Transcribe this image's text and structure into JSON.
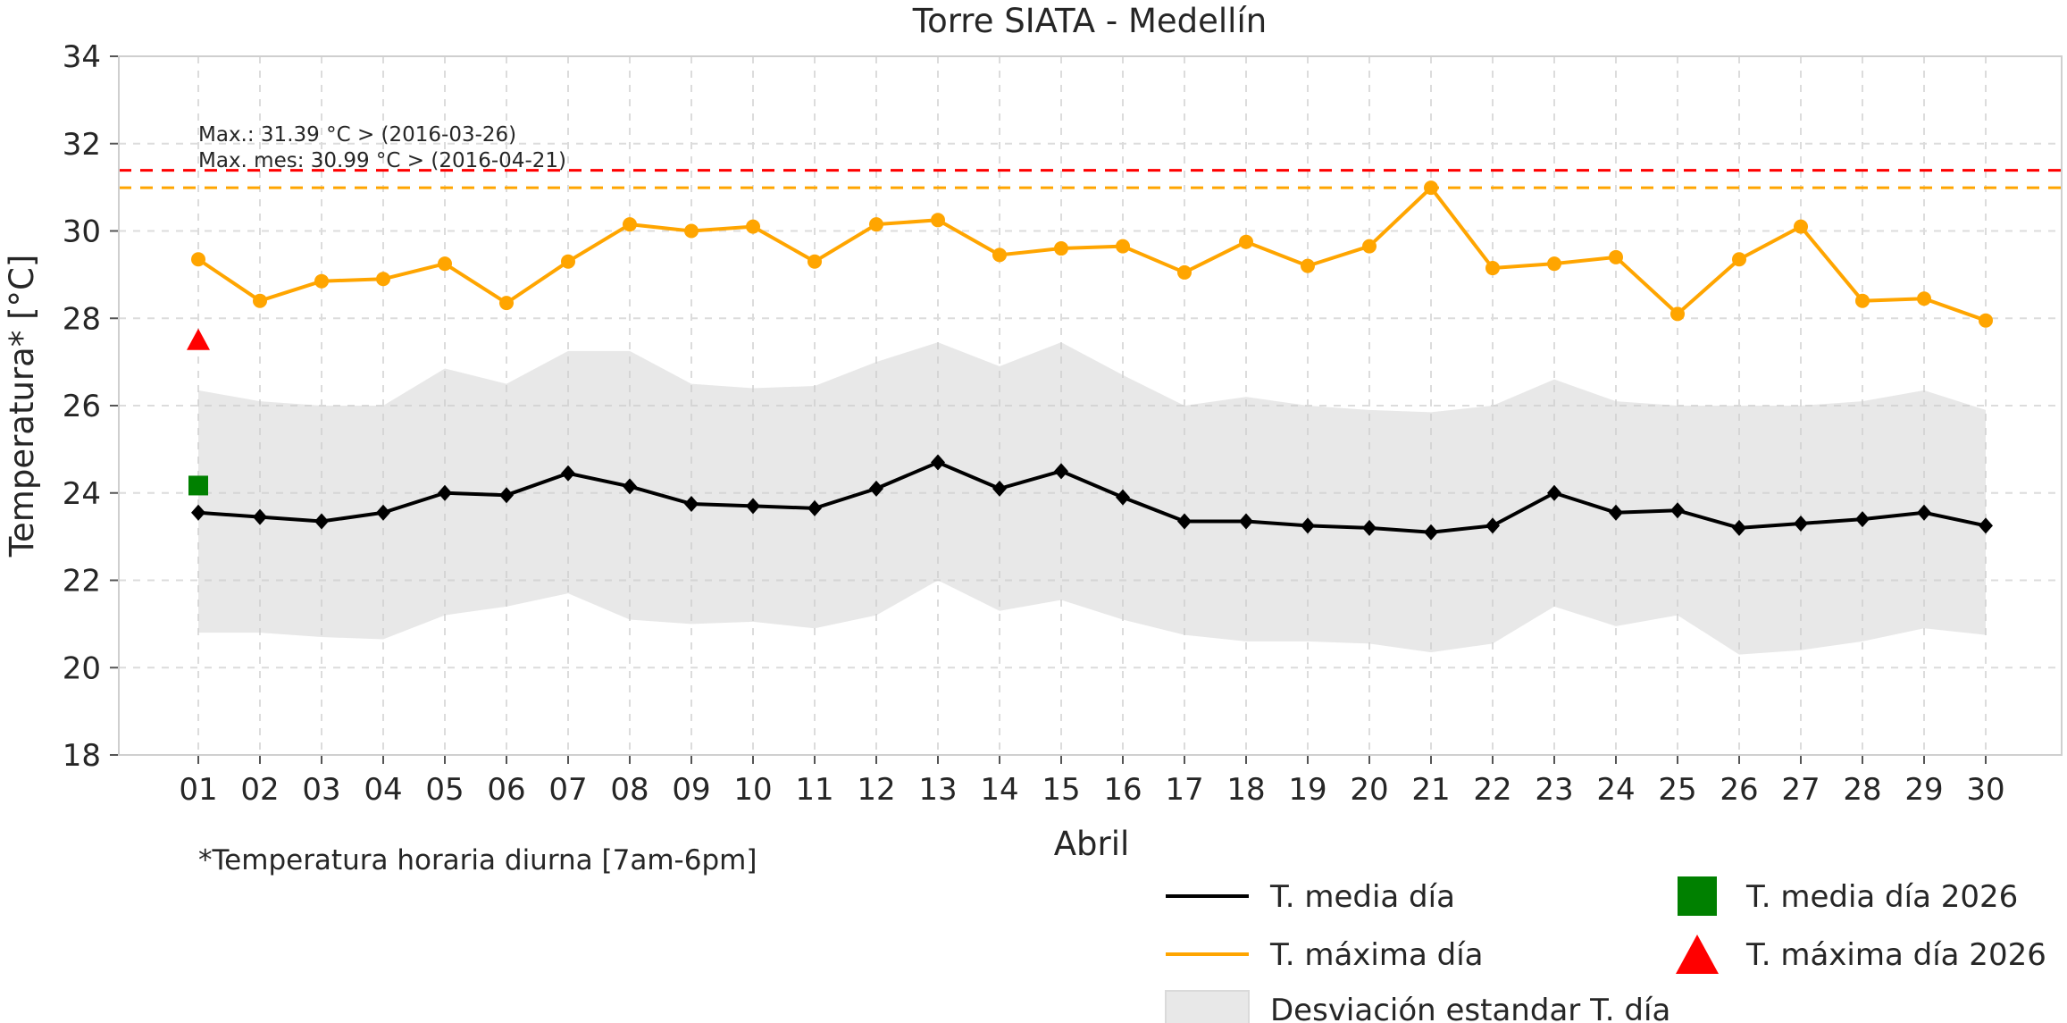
{
  "title": "Torre SIATA - Medellín",
  "footnote": "*Temperatura horaria diurna [7am-6pm]",
  "colors": {
    "media_line": "#000000",
    "maxima_line": "#FFA500",
    "band_fill": "#CCCCCC",
    "record_line": "#FF0000",
    "month_max_line": "#FFA500",
    "media_2026_marker": "#008000",
    "maxima_2026_marker": "#FF0000",
    "grid": "#DCDCDC",
    "spine": "#CFCFCF",
    "text": "#262626"
  },
  "chart_data": {
    "type": "line",
    "title": "Torre SIATA - Medellín",
    "xlabel": "Abril",
    "ylabel": "Temperatura* [°C]",
    "ylim": [
      18,
      34
    ],
    "y_ticks": [
      18,
      20,
      22,
      24,
      26,
      28,
      30,
      32,
      34
    ],
    "grid": "both, dashed",
    "legend_position": "below plot, two columns",
    "x_categories": [
      "01",
      "02",
      "03",
      "04",
      "05",
      "06",
      "07",
      "08",
      "09",
      "10",
      "11",
      "12",
      "13",
      "14",
      "15",
      "16",
      "17",
      "18",
      "19",
      "20",
      "21",
      "22",
      "23",
      "24",
      "25",
      "26",
      "27",
      "28",
      "29",
      "30"
    ],
    "series": [
      {
        "name": "T. media día",
        "type": "line",
        "marker": "diamond",
        "color": "#000000",
        "values": [
          23.55,
          23.45,
          23.35,
          23.55,
          24.0,
          23.95,
          24.45,
          24.15,
          23.75,
          23.7,
          23.65,
          24.1,
          24.7,
          24.1,
          24.5,
          23.9,
          23.35,
          23.35,
          23.25,
          23.2,
          23.1,
          23.25,
          24.0,
          23.55,
          23.6,
          23.2,
          23.3,
          23.4,
          23.55,
          23.25
        ]
      },
      {
        "name": "T. máxima día",
        "type": "line",
        "marker": "circle",
        "color": "#FFA500",
        "values": [
          29.35,
          28.4,
          28.85,
          28.9,
          29.25,
          28.35,
          29.3,
          30.15,
          30.0,
          30.1,
          29.3,
          30.15,
          30.25,
          29.45,
          29.6,
          29.65,
          29.05,
          29.75,
          29.2,
          29.65,
          30.99,
          29.15,
          29.25,
          29.4,
          28.1,
          29.35,
          30.1,
          28.4,
          28.45,
          27.95
        ]
      },
      {
        "name": "Desviación estandar T. día",
        "type": "band",
        "color": "#CCCCCC",
        "upper": [
          26.35,
          26.1,
          26.0,
          26.0,
          26.85,
          26.5,
          27.25,
          27.25,
          26.5,
          26.4,
          26.45,
          27.0,
          27.45,
          26.9,
          27.45,
          26.7,
          26.0,
          26.2,
          26.0,
          25.9,
          25.85,
          26.0,
          26.6,
          26.1,
          26.0,
          26.0,
          26.0,
          26.1,
          26.35,
          25.9
        ],
        "lower": [
          20.8,
          20.8,
          20.7,
          20.65,
          21.2,
          21.4,
          21.7,
          21.1,
          21.0,
          21.05,
          20.9,
          21.2,
          22.0,
          21.3,
          21.55,
          21.1,
          20.75,
          20.6,
          20.6,
          20.55,
          20.35,
          20.55,
          21.4,
          20.95,
          21.2,
          20.3,
          20.4,
          20.6,
          20.9,
          20.75
        ]
      },
      {
        "name": "T. media día 2026",
        "type": "point",
        "marker": "square",
        "color": "#008000",
        "x": "01",
        "value": 24.17
      },
      {
        "name": "T. máxima día 2026",
        "type": "point",
        "marker": "triangle",
        "color": "#FF0000",
        "x": "01",
        "value": 27.5
      }
    ],
    "reference_lines": [
      {
        "label": "Max.: 31.39 °C  >  (2016-03-26)",
        "value": 31.39,
        "color": "#FF0000",
        "style": "dashed"
      },
      {
        "label": "Max. mes: 30.99 °C  >  (2016-04-21)",
        "value": 30.99,
        "color": "#FFA500",
        "style": "dashed"
      }
    ],
    "footnote": "*Temperatura horaria diurna [7am-6pm]"
  }
}
